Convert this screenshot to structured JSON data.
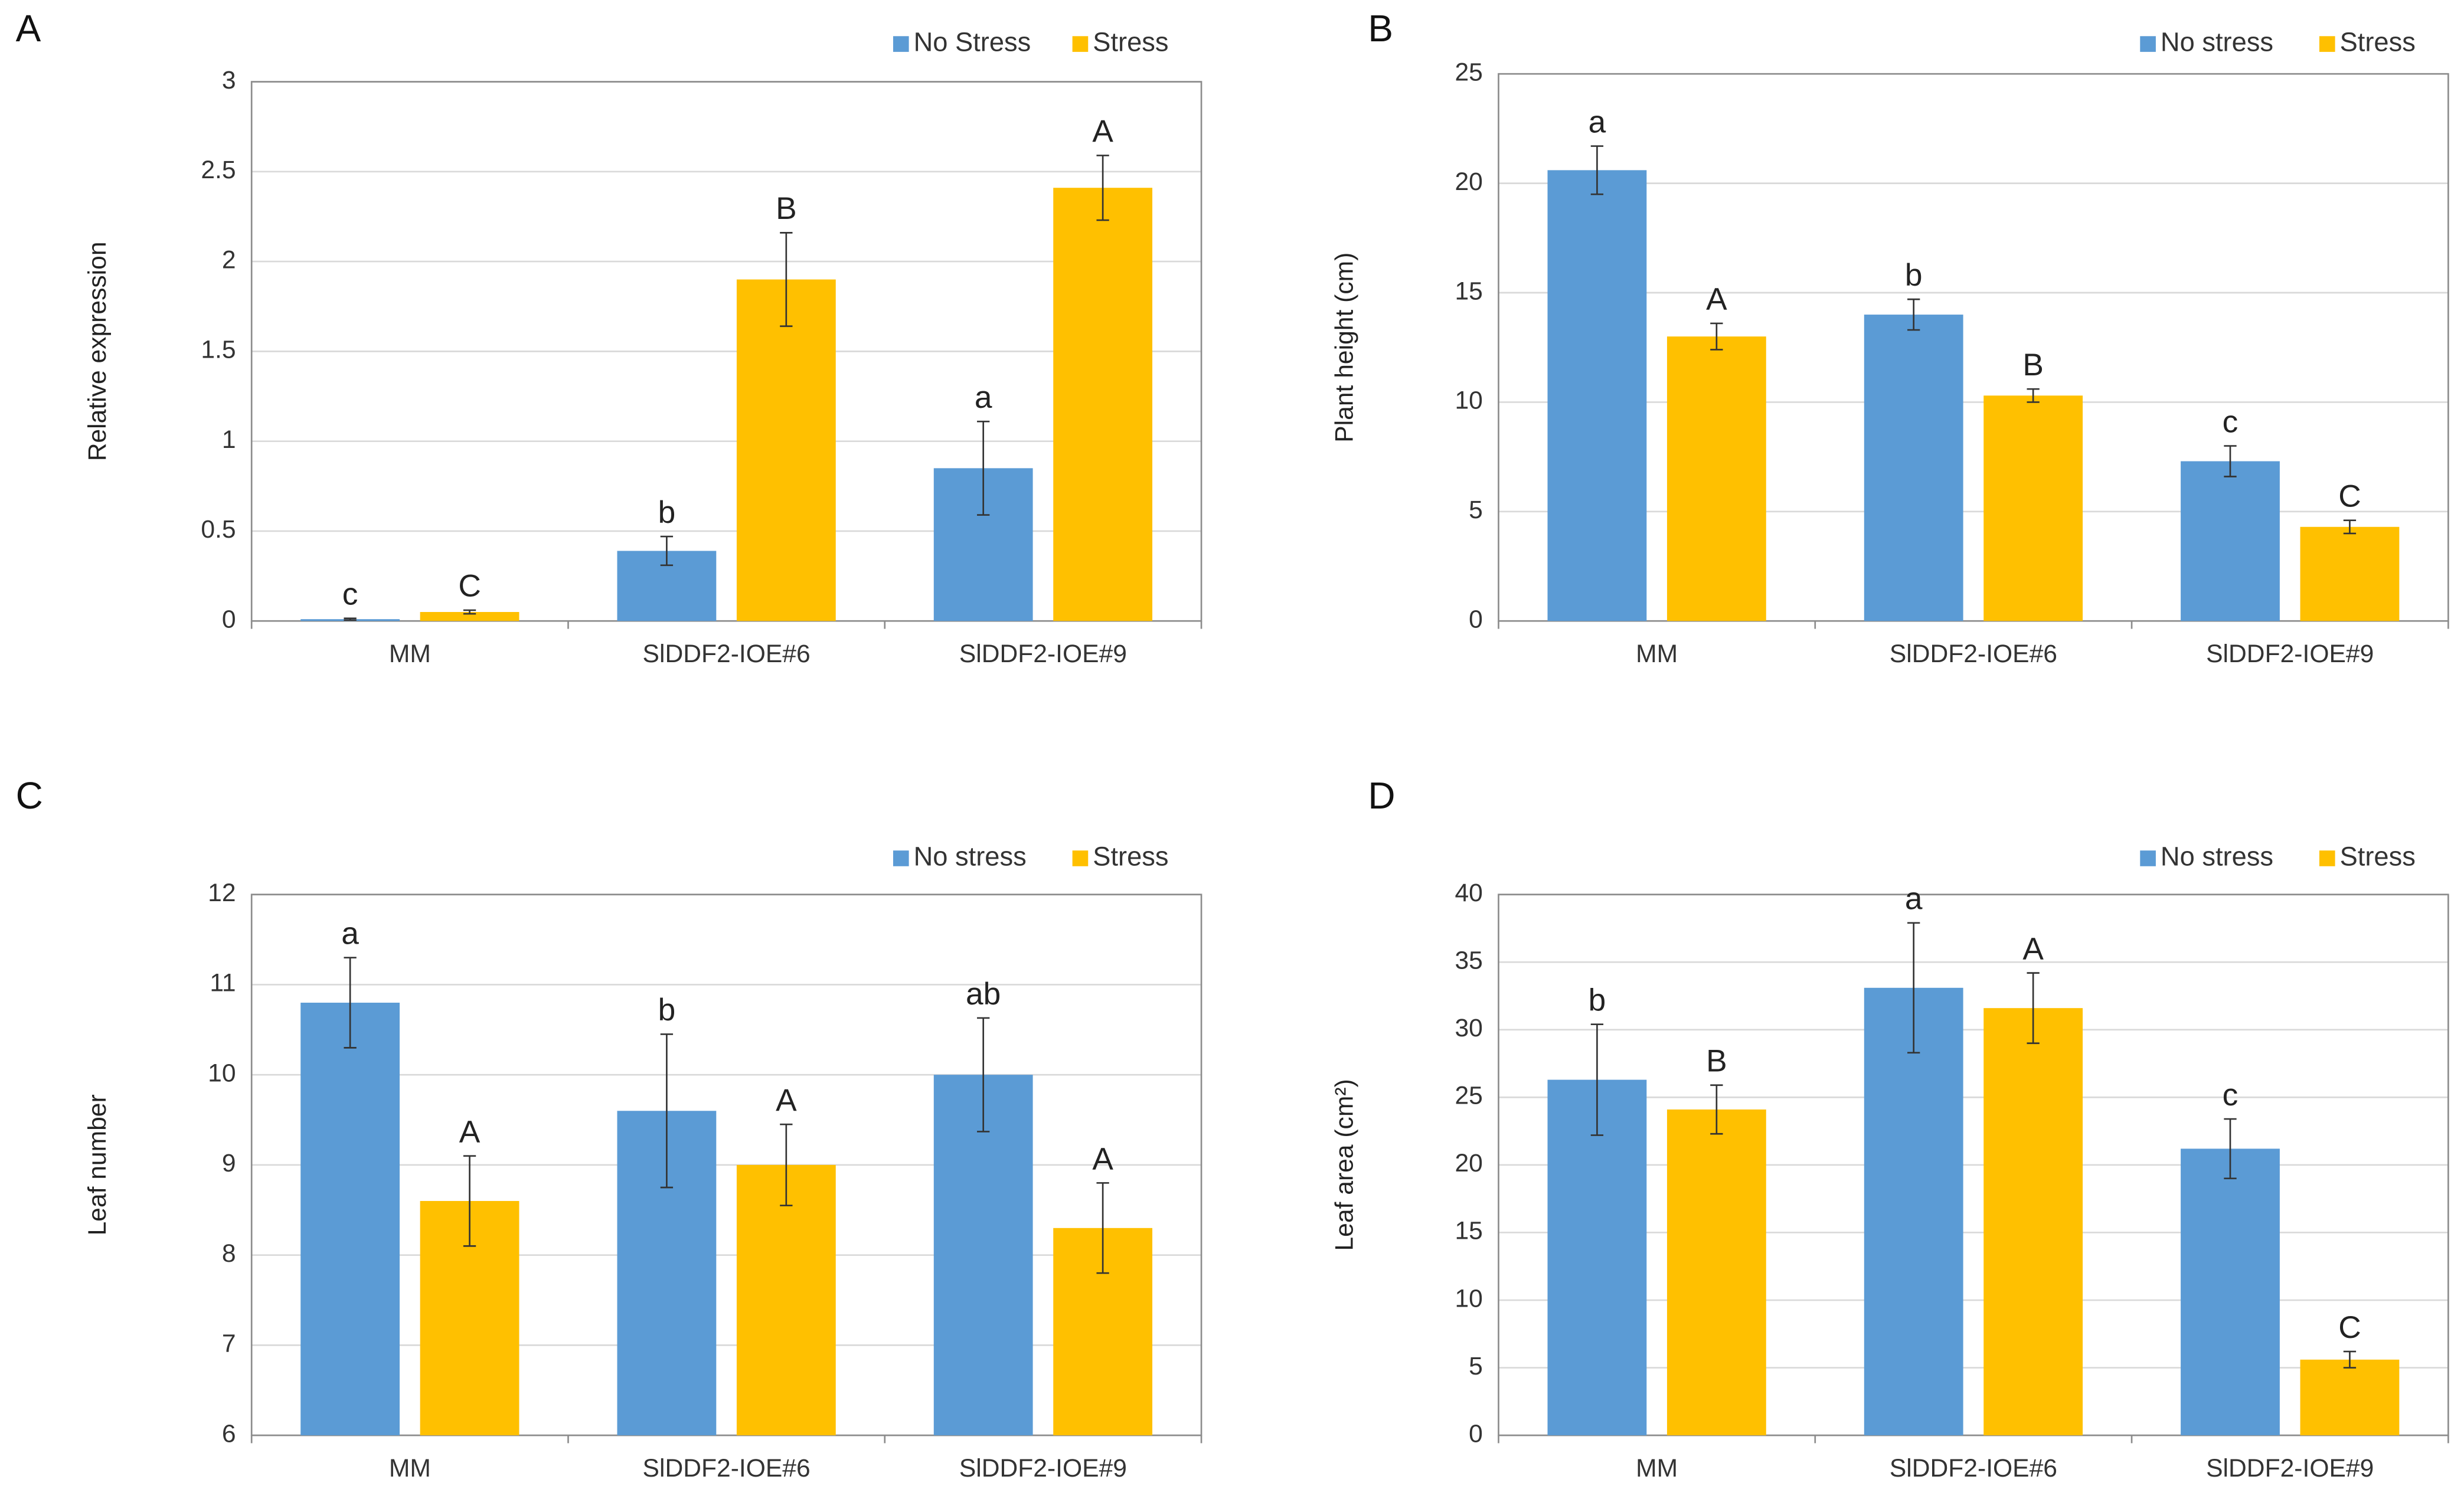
{
  "chart_data": [
    {
      "type": "bar",
      "panel_label": "A",
      "ylabel": "Relative expression",
      "categories": [
        "MM",
        "SlDDF2-IOE#6",
        "SlDDF2-IOE#9"
      ],
      "series": [
        {
          "name": "No Stress",
          "color": "#5b9bd5",
          "values": [
            0.01,
            0.39,
            0.85
          ],
          "errors": [
            0.005,
            0.08,
            0.26
          ],
          "significance": [
            "c",
            "b",
            "a"
          ]
        },
        {
          "name": "Stress",
          "color": "#ffc000",
          "values": [
            0.05,
            1.9,
            2.41
          ],
          "errors": [
            0.01,
            0.26,
            0.18
          ],
          "significance": [
            "C",
            "B",
            "A"
          ]
        }
      ],
      "ylim": [
        0,
        3
      ],
      "yticks": [
        0,
        0.5,
        1,
        1.5,
        2,
        2.5,
        3
      ],
      "grid": true
    },
    {
      "type": "bar",
      "panel_label": "B",
      "ylabel": "Plant height (cm)",
      "categories": [
        "MM",
        "SlDDF2-IOE#6",
        "SlDDF2-IOE#9"
      ],
      "series": [
        {
          "name": "No stress",
          "color": "#5b9bd5",
          "values": [
            20.6,
            14,
            7.3
          ],
          "errors": [
            1.1,
            0.7,
            0.7
          ],
          "significance": [
            "a",
            "b",
            "c"
          ]
        },
        {
          "name": "Stress",
          "color": "#ffc000",
          "values": [
            13,
            10.3,
            4.3
          ],
          "errors": [
            0.6,
            0.3,
            0.3
          ],
          "significance": [
            "A",
            "B",
            "C"
          ]
        }
      ],
      "ylim": [
        0,
        25
      ],
      "yticks": [
        0,
        5,
        10,
        15,
        20,
        25
      ],
      "grid": true
    },
    {
      "type": "bar",
      "panel_label": "C",
      "ylabel": "Leaf number",
      "categories": [
        "MM",
        "SlDDF2-IOE#6",
        "SlDDF2-IOE#9"
      ],
      "series": [
        {
          "name": "No stress",
          "color": "#5b9bd5",
          "values": [
            10.8,
            9.6,
            10.0
          ],
          "errors": [
            0.5,
            0.85,
            0.63
          ],
          "significance": [
            "a",
            "b",
            "ab"
          ]
        },
        {
          "name": "Stress",
          "color": "#ffc000",
          "values": [
            8.6,
            9.0,
            8.3
          ],
          "errors": [
            0.5,
            0.45,
            0.5
          ],
          "significance": [
            "A",
            "A",
            "A"
          ]
        }
      ],
      "ylim": [
        6,
        12
      ],
      "yticks": [
        6,
        7,
        8,
        9,
        10,
        11,
        12
      ],
      "grid": true
    },
    {
      "type": "bar",
      "panel_label": "D",
      "ylabel": "Leaf area (cm²)",
      "categories": [
        "MM",
        "SlDDF2-IOE#6",
        "SlDDF2-IOE#9"
      ],
      "series": [
        {
          "name": "No stress",
          "color": "#5b9bd5",
          "values": [
            26.3,
            33.1,
            21.2
          ],
          "errors": [
            4.1,
            4.8,
            2.2
          ],
          "significance": [
            "b",
            "a",
            "c"
          ]
        },
        {
          "name": "Stress",
          "color": "#ffc000",
          "values": [
            24.1,
            31.6,
            5.6
          ],
          "errors": [
            1.8,
            2.6,
            0.6
          ],
          "significance": [
            "B",
            "A",
            "C"
          ]
        }
      ],
      "ylim": [
        0,
        40
      ],
      "yticks": [
        0,
        5,
        10,
        15,
        20,
        25,
        30,
        35,
        40
      ],
      "grid": true
    }
  ]
}
